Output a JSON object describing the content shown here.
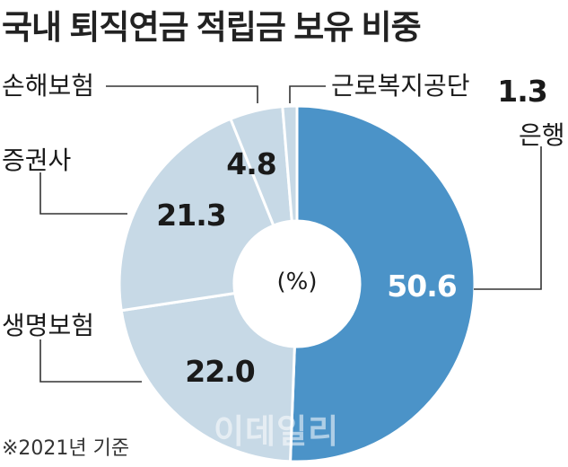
{
  "chart_data": {
    "type": "pie",
    "title": "국내 퇴직연금 적립금 보유 비중",
    "center_label": "(%)",
    "note": "※2021년 기준",
    "watermark": "이데일리",
    "slices": [
      {
        "name": "은행",
        "value": 50.6,
        "value_label": "50.6",
        "color": "#4b93c8"
      },
      {
        "name": "생명보험",
        "value": 22.0,
        "value_label": "22.0",
        "color": "#c7d9e6"
      },
      {
        "name": "증권사",
        "value": 21.3,
        "value_label": "21.3",
        "color": "#c7d9e6"
      },
      {
        "name": "손해보험",
        "value": 4.8,
        "value_label": "4.8",
        "color": "#c7d9e6"
      },
      {
        "name": "근로복지공단",
        "value": 1.3,
        "value_label": "1.3",
        "color": "#c7d9e6"
      }
    ]
  }
}
